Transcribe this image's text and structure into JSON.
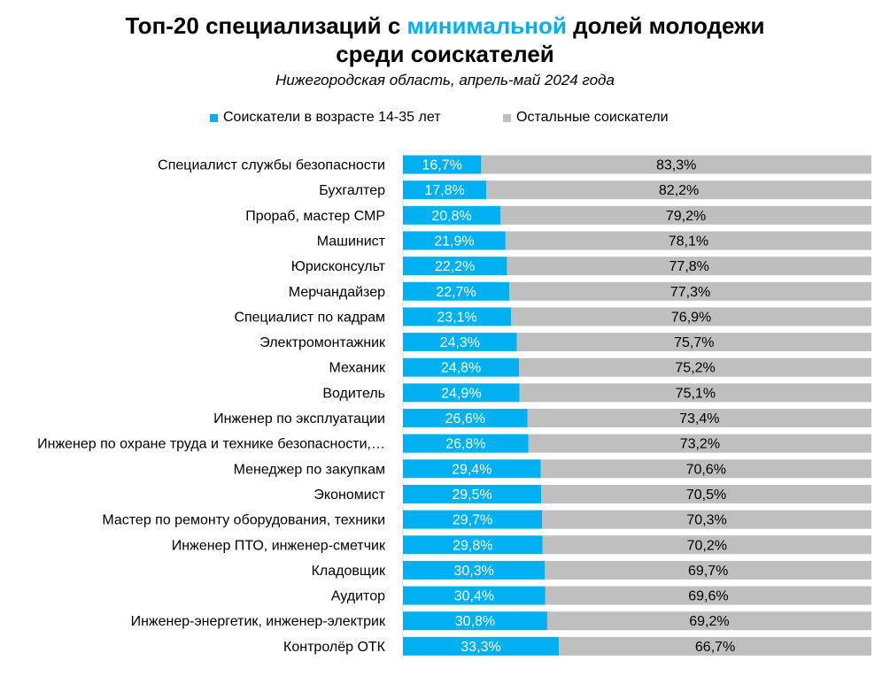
{
  "title": {
    "line1_before": "Топ-20 специализаций с ",
    "line1_highlight": "минимальной",
    "line1_after": " долей молодежи",
    "line2": "среди соискателей"
  },
  "subtitle": "Нижегородская область, апрель-май 2024 года",
  "legend": {
    "young": "Соискатели в возрасте 14-35 лет",
    "other": "Остальные соискатели"
  },
  "colors": {
    "young": "#00b0f0",
    "other": "#bfbfbf",
    "highlight": "#00b0f0"
  },
  "chart_data": {
    "type": "bar",
    "stacked": "100%",
    "orientation": "horizontal",
    "categories": [
      "Специалист службы безопасности",
      "Бухгалтер",
      "Прораб, мастер СМР",
      "Машинист",
      "Юрисконсульт",
      "Мерчандайзер",
      "Специалист по кадрам",
      "Электромонтажник",
      "Механик",
      "Водитель",
      "Инженер по эксплуатации",
      "Инженер по охране труда и технике безопасности,…",
      "Менеджер по закупкам",
      "Экономист",
      "Мастер по ремонту оборудования, техники",
      "Инженер ПТО, инженер-сметчик",
      "Кладовщик",
      "Аудитор",
      "Инженер-энергетик, инженер-электрик",
      "Контролёр ОТК"
    ],
    "series": [
      {
        "name": "Соискатели в возрасте 14-35 лет",
        "values": [
          16.7,
          17.8,
          20.8,
          21.9,
          22.2,
          22.7,
          23.1,
          24.3,
          24.8,
          24.9,
          26.6,
          26.8,
          29.4,
          29.5,
          29.7,
          29.8,
          30.3,
          30.4,
          30.8,
          33.3
        ],
        "labels": [
          "16,7%",
          "17,8%",
          "20,8%",
          "21,9%",
          "22,2%",
          "22,7%",
          "23,1%",
          "24,3%",
          "24,8%",
          "24,9%",
          "26,6%",
          "26,8%",
          "29,4%",
          "29,5%",
          "29,7%",
          "29,8%",
          "30,3%",
          "30,4%",
          "30,8%",
          "33,3%"
        ]
      },
      {
        "name": "Остальные соискатели",
        "values": [
          83.3,
          82.2,
          79.2,
          78.1,
          77.8,
          77.3,
          76.9,
          75.7,
          75.2,
          75.1,
          73.4,
          73.2,
          70.6,
          70.5,
          70.3,
          70.2,
          69.7,
          69.6,
          69.2,
          66.7
        ],
        "labels": [
          "83,3%",
          "82,2%",
          "79,2%",
          "78,1%",
          "77,8%",
          "77,3%",
          "76,9%",
          "75,7%",
          "75,2%",
          "75,1%",
          "73,4%",
          "73,2%",
          "70,6%",
          "70,5%",
          "70,3%",
          "70,2%",
          "69,7%",
          "69,6%",
          "69,2%",
          "66,7%"
        ]
      }
    ],
    "xlim": [
      0,
      100
    ]
  }
}
